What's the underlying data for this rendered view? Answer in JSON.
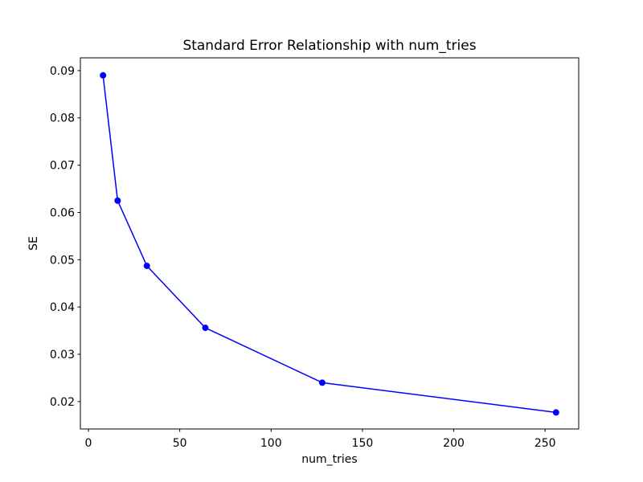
{
  "figure": {
    "background_color": "#ffffff",
    "text_color": "#000000"
  },
  "chart_data": {
    "type": "line",
    "title": "Standard Error Relationship with num_tries",
    "xlabel": "num_tries",
    "ylabel": "SE",
    "x": [
      8,
      16,
      32,
      64,
      128,
      256
    ],
    "y": [
      0.089,
      0.0625,
      0.0487,
      0.0356,
      0.024,
      0.0177
    ],
    "series": [
      {
        "name": "SE",
        "x": [
          8,
          16,
          32,
          64,
          128,
          256
        ],
        "y": [
          0.089,
          0.0625,
          0.0487,
          0.0356,
          0.024,
          0.0177
        ]
      }
    ],
    "line_color": "#0000ff",
    "marker": "circle",
    "marker_color": "#0000ff",
    "marker_radius_px": 4,
    "xlim": [
      -4.4,
      268.4
    ],
    "ylim": [
      0.0142,
      0.0927
    ],
    "xticks": [
      0,
      50,
      100,
      150,
      200,
      250
    ],
    "xtick_labels": [
      "0",
      "50",
      "100",
      "150",
      "200",
      "250"
    ],
    "yticks": [
      0.02,
      0.03,
      0.04,
      0.05,
      0.06,
      0.07,
      0.08,
      0.09
    ],
    "ytick_labels": [
      "0.02",
      "0.03",
      "0.04",
      "0.05",
      "0.06",
      "0.07",
      "0.08",
      "0.09"
    ],
    "grid": false,
    "legend": null
  }
}
